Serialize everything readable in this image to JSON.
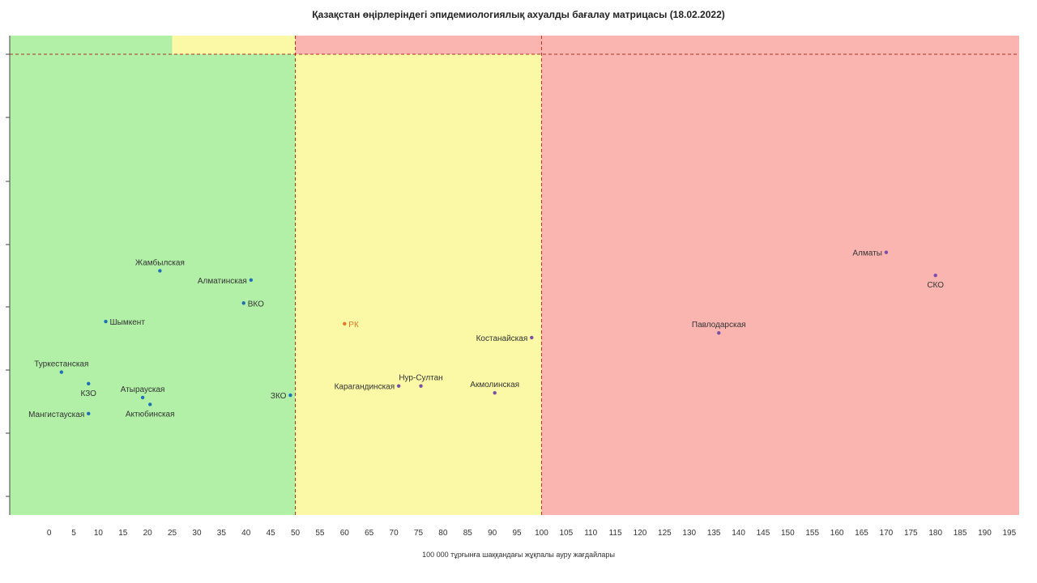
{
  "chart_data": {
    "type": "scatter",
    "title": "Қазақстан өңірлеріндегі эпидемиологиялық ахуалды бағалау матрицасы  (18.02.2022)",
    "xlabel": "100 000 тұрғынға шаққандағы жұқпалы ауру жағдайлары",
    "ylabel": "",
    "xlim": [
      -8,
      197
    ],
    "x_ticks": [
      0,
      5,
      10,
      15,
      20,
      25,
      30,
      35,
      40,
      45,
      50,
      55,
      60,
      65,
      70,
      75,
      80,
      85,
      90,
      95,
      100,
      105,
      110,
      115,
      120,
      125,
      130,
      135,
      140,
      145,
      150,
      155,
      160,
      165,
      170,
      175,
      180,
      185,
      190,
      195
    ],
    "grid": false,
    "zones": [
      {
        "name": "green",
        "x_from": -8,
        "x_to": 50,
        "color": "#b2f0a8"
      },
      {
        "name": "yellow",
        "x_from": 50,
        "x_to": 100,
        "color": "#fbf9a6"
      },
      {
        "name": "red",
        "x_from": 100,
        "x_to": 197,
        "color": "#fbb5b0"
      }
    ],
    "top_band": [
      {
        "x_from": -8,
        "x_to": 25,
        "color": "#b2f0a8"
      },
      {
        "x_from": 25,
        "x_to": 50,
        "color": "#fbf9a6"
      },
      {
        "x_from": 50,
        "x_to": 197,
        "color": "#fbb5b0"
      }
    ],
    "thresholds_x": [
      50,
      100
    ],
    "points": [
      {
        "label": "Жамбылская",
        "x": 22.5,
        "y": 0.53,
        "label_pos": "above",
        "color": "#1f6fb4"
      },
      {
        "label": "Алматинская",
        "x": 41,
        "y": 0.51,
        "label_pos": "left",
        "color": "#1f6fb4"
      },
      {
        "label": "ВКО",
        "x": 39.5,
        "y": 0.46,
        "label_pos": "right",
        "color": "#1f6fb4"
      },
      {
        "label": "Шымкент",
        "x": 11.5,
        "y": 0.42,
        "label_pos": "right",
        "color": "#1f6fb4"
      },
      {
        "label": "Туркестанская",
        "x": 2.5,
        "y": 0.31,
        "label_pos": "above",
        "color": "#1f6fb4"
      },
      {
        "label": "КЗО",
        "x": 8,
        "y": 0.285,
        "label_pos": "below",
        "color": "#1f6fb4"
      },
      {
        "label": "Атырауская",
        "x": 19,
        "y": 0.255,
        "label_pos": "above",
        "color": "#1f6fb4"
      },
      {
        "label": "Актюбинская",
        "x": 20.5,
        "y": 0.24,
        "label_pos": "below",
        "color": "#1f6fb4"
      },
      {
        "label": "ЗКО",
        "x": 49,
        "y": 0.26,
        "label_pos": "left",
        "color": "#1f6fb4"
      },
      {
        "label": "Мангистауская",
        "x": 8,
        "y": 0.22,
        "label_pos": "left",
        "color": "#1f6fb4"
      },
      {
        "label": "РК",
        "x": 60,
        "y": 0.415,
        "label_pos": "right",
        "color": "#e8762a"
      },
      {
        "label": "Костанайская",
        "x": 98,
        "y": 0.385,
        "label_pos": "left",
        "color": "#7a4fa8"
      },
      {
        "label": "Нур-Султан",
        "x": 75.5,
        "y": 0.28,
        "label_pos": "above",
        "color": "#7a4fa8"
      },
      {
        "label": "Карагандинская",
        "x": 71,
        "y": 0.28,
        "label_pos": "left",
        "color": "#7a4fa8"
      },
      {
        "label": "Акмолинская",
        "x": 90.5,
        "y": 0.265,
        "label_pos": "above",
        "color": "#7a4fa8"
      },
      {
        "label": "Павлодарская",
        "x": 136,
        "y": 0.395,
        "label_pos": "above",
        "color": "#7a4fa8"
      },
      {
        "label": "Алматы",
        "x": 170,
        "y": 0.57,
        "label_pos": "left",
        "color": "#7a4fa8"
      },
      {
        "label": "СКО",
        "x": 180,
        "y": 0.52,
        "label_pos": "below",
        "color": "#7a4fa8"
      }
    ]
  }
}
